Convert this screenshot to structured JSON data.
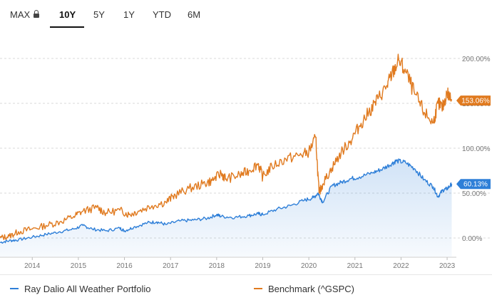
{
  "tabs": [
    {
      "label": "MAX",
      "locked": true
    },
    {
      "label": "10Y",
      "active": true
    },
    {
      "label": "5Y"
    },
    {
      "label": "1Y"
    },
    {
      "label": "YTD"
    },
    {
      "label": "6M"
    }
  ],
  "colors": {
    "portfolio": "#2e7fd8",
    "benchmark": "#e07a1f",
    "grid": "#d9d9d9"
  },
  "chart_data": {
    "type": "line",
    "xlabel": "",
    "ylabel": "",
    "x_ticks": [
      "2014",
      "2015",
      "2016",
      "2017",
      "2018",
      "2019",
      "2020",
      "2021",
      "2022",
      "2023"
    ],
    "y_ticks": [
      "0.00%",
      "50.00%",
      "100.00%",
      "150.00%",
      "200.00%"
    ],
    "ylim": [
      -10,
      210
    ],
    "xlim": [
      2013.3,
      2023.2
    ],
    "grid": true,
    "legend": "bottom",
    "series": [
      {
        "name": "Ray Dalio All Weather Portfolio",
        "end_label": "60.13%",
        "x": [
          2013.3,
          2013.5,
          2013.7,
          2014.0,
          2014.3,
          2014.6,
          2014.9,
          2015.1,
          2015.3,
          2015.6,
          2015.9,
          2016.0,
          2016.2,
          2016.5,
          2016.7,
          2016.9,
          2017.2,
          2017.5,
          2017.8,
          2018.0,
          2018.1,
          2018.4,
          2018.7,
          2018.9,
          2019.0,
          2019.3,
          2019.6,
          2019.9,
          2020.1,
          2020.2,
          2020.3,
          2020.5,
          2020.7,
          2020.9,
          2021.1,
          2021.4,
          2021.6,
          2021.8,
          2021.9,
          2022.1,
          2022.3,
          2022.5,
          2022.7,
          2022.8,
          2022.9,
          2023.0,
          2023.1
        ],
        "values": [
          -5,
          -3,
          -2,
          1,
          4,
          7,
          10,
          14,
          10,
          8,
          11,
          8,
          12,
          17,
          18,
          15,
          19,
          20,
          22,
          26,
          24,
          23,
          25,
          27,
          26,
          32,
          36,
          42,
          45,
          50,
          40,
          58,
          62,
          66,
          68,
          73,
          77,
          83,
          86,
          84,
          77,
          65,
          57,
          46,
          53,
          55,
          60.13
        ]
      },
      {
        "name": "Benchmark (^GSPC)",
        "end_label": "153.06%",
        "x": [
          2013.3,
          2013.5,
          2013.7,
          2014.0,
          2014.3,
          2014.6,
          2014.9,
          2015.1,
          2015.4,
          2015.6,
          2015.9,
          2016.1,
          2016.3,
          2016.6,
          2016.9,
          2017.1,
          2017.4,
          2017.7,
          2017.9,
          2018.1,
          2018.2,
          2018.5,
          2018.7,
          2018.9,
          2019.0,
          2019.2,
          2019.5,
          2019.8,
          2020.0,
          2020.15,
          2020.22,
          2020.3,
          2020.5,
          2020.7,
          2020.9,
          2021.1,
          2021.3,
          2021.5,
          2021.7,
          2021.8,
          2021.95,
          2022.1,
          2022.3,
          2022.5,
          2022.7,
          2022.8,
          2022.9,
          2023.0,
          2023.1
        ],
        "values": [
          0,
          2,
          7,
          10,
          14,
          18,
          24,
          30,
          34,
          28,
          31,
          26,
          30,
          36,
          40,
          48,
          55,
          60,
          64,
          72,
          66,
          70,
          75,
          83,
          68,
          80,
          88,
          92,
          96,
          112,
          50,
          60,
          78,
          95,
          108,
          125,
          140,
          155,
          170,
          182,
          198,
          185,
          160,
          140,
          128,
          150,
          145,
          162,
          153.06
        ]
      }
    ]
  }
}
